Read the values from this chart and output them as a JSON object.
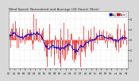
{
  "title": "Wind Speed: Normalized and Average (24 Hours) (New)",
  "bg_color": "#d8d8d8",
  "plot_bg": "#ffffff",
  "bar_color": "#dd0000",
  "line_color": "#0000cc",
  "n_points": 200,
  "ylim": [
    -5.5,
    5.5
  ],
  "ytick_labels": [
    "5",
    "4",
    "3",
    "2",
    "1",
    "",
    "1",
    "2",
    "3",
    "4",
    "5"
  ],
  "grid_color": "#bbbbbb",
  "title_fontsize": 3.0,
  "tick_fontsize": 2.2,
  "legend_fontsize": 2.2,
  "seed": 17
}
